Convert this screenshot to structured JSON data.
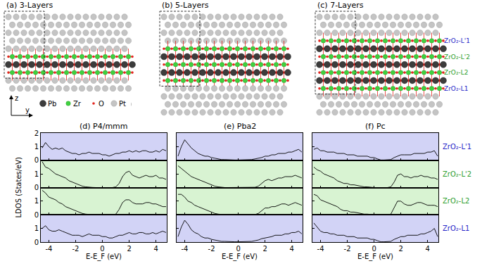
{
  "structures": {
    "panels": [
      {
        "title": "(a) 3-Layers",
        "layers": 3
      },
      {
        "title": "(b) 5-Layers",
        "layers": 5
      },
      {
        "title": "(c) 7-Layers",
        "layers": 7
      }
    ],
    "atoms": [
      {
        "label": "Pb",
        "color": "#3c3c3c"
      },
      {
        "label": "Zr",
        "color": "#3fd13f"
      },
      {
        "label": "O",
        "color": "#e3261f"
      },
      {
        "label": "Pt",
        "color": "#c4c4c4"
      }
    ],
    "axes": {
      "vertical": "z",
      "horizontal": "y"
    },
    "layer_labels": [
      {
        "text": "ZrO₂-L'1",
        "color": "#2626c8"
      },
      {
        "text": "ZrO₂-L'2",
        "color": "#2e9e2e"
      },
      {
        "text": "ZrO₂-L2",
        "color": "#2e9e2e"
      },
      {
        "text": "ZrO₂-L1",
        "color": "#2626c8"
      }
    ]
  },
  "chart_data": [
    {
      "type": "line",
      "title": "(d) P4/mmm",
      "x_label": "E-E_F (eV)",
      "y_label": "LDOS (States/eV)",
      "tick_labels": true,
      "grid": false,
      "xlim": [
        -4.6,
        4.8
      ],
      "xticks": [
        -4,
        -2,
        0,
        2,
        4
      ],
      "x": [
        -4.5,
        -4.25,
        -4,
        -3.75,
        -3.5,
        -3.25,
        -3,
        -2.75,
        -2.5,
        -2.25,
        -2,
        -1.75,
        -1.5,
        -1.25,
        -1,
        -0.75,
        -0.5,
        -0.25,
        0,
        0.25,
        0.5,
        0.75,
        1,
        1.25,
        1.5,
        1.75,
        2,
        2.25,
        2.5,
        2.75,
        3,
        3.25,
        3.5,
        3.75,
        4,
        4.25,
        4.5,
        4.75
      ],
      "series": [
        {
          "name": "ZrO₂-L'1",
          "color": "#000000",
          "ylim": [
            0,
            2
          ],
          "yticks": [
            0,
            1,
            2
          ],
          "values": [
            0.9,
            1.3,
            1.0,
            0.8,
            0.9,
            0.8,
            0.9,
            0.7,
            0.6,
            0.5,
            0.5,
            0.4,
            0.5,
            0.5,
            0.6,
            0.5,
            0.5,
            0.5,
            0.4,
            0.4,
            0.3,
            0.4,
            0.5,
            0.5,
            0.6,
            0.6,
            0.7,
            0.6,
            0.7,
            0.6,
            0.7,
            0.7,
            0.6,
            0.6,
            0.7,
            0.6,
            0.8,
            0.7
          ]
        },
        {
          "name": "ZrO₂-L'2",
          "color": "#000000",
          "ylim": [
            0,
            2
          ],
          "yticks": [
            0,
            1
          ],
          "values": [
            1.9,
            1.5,
            1.4,
            1.2,
            1.0,
            0.9,
            0.8,
            0.7,
            0.5,
            0.4,
            0.3,
            0.2,
            0.1,
            0.05,
            0.02,
            0.01,
            0,
            0,
            0,
            0,
            0,
            0,
            0.05,
            0.3,
            0.8,
            1.1,
            1.2,
            0.9,
            0.8,
            0.7,
            0.8,
            0.9,
            0.8,
            0.8,
            0.9,
            0.7,
            0.7,
            0.6
          ]
        },
        {
          "name": "ZrO₂-L2",
          "color": "#000000",
          "ylim": [
            0,
            2
          ],
          "yticks": [
            0,
            1
          ],
          "values": [
            1.8,
            1.6,
            1.3,
            1.2,
            1.1,
            0.9,
            0.8,
            0.6,
            0.5,
            0.4,
            0.3,
            0.2,
            0.1,
            0.05,
            0.02,
            0.01,
            0,
            0,
            0,
            0,
            0,
            0,
            0.05,
            0.4,
            0.9,
            1.1,
            1.1,
            0.9,
            0.8,
            0.8,
            0.8,
            0.9,
            0.9,
            0.8,
            0.8,
            0.7,
            0.6,
            0.6
          ]
        },
        {
          "name": "ZrO₂-L1",
          "color": "#000000",
          "ylim": [
            0,
            2
          ],
          "yticks": [
            0,
            1
          ],
          "values": [
            1.0,
            1.2,
            0.9,
            0.8,
            0.8,
            0.9,
            0.8,
            0.7,
            0.6,
            0.5,
            0.5,
            0.5,
            0.4,
            0.5,
            0.6,
            0.5,
            0.5,
            0.5,
            0.4,
            0.4,
            0.3,
            0.3,
            0.4,
            0.5,
            0.5,
            0.6,
            0.7,
            0.6,
            0.6,
            0.7,
            0.7,
            0.6,
            0.6,
            0.7,
            0.6,
            0.7,
            0.8,
            0.7
          ]
        }
      ]
    },
    {
      "type": "line",
      "title": "(e) Pba2",
      "x_label": "E-E_F (eV)",
      "tick_labels": "x",
      "grid": false,
      "xlim": [
        -4.6,
        4.8
      ],
      "xticks": [
        -4,
        -2,
        0,
        2,
        4
      ],
      "x": [
        -4.5,
        -4.25,
        -4,
        -3.75,
        -3.5,
        -3.25,
        -3,
        -2.75,
        -2.5,
        -2.25,
        -2,
        -1.75,
        -1.5,
        -1.25,
        -1,
        -0.75,
        -0.5,
        -0.25,
        0,
        0.25,
        0.5,
        0.75,
        1,
        1.25,
        1.5,
        1.75,
        2,
        2.25,
        2.5,
        2.75,
        3,
        3.25,
        3.5,
        3.75,
        4,
        4.25,
        4.5,
        4.75
      ],
      "series": [
        {
          "name": "ZrO₂-L'1",
          "color": "#000000",
          "ylim": [
            0,
            2
          ],
          "yticks": [
            0,
            1,
            2
          ],
          "values": [
            0.3,
            1.0,
            1.5,
            1.2,
            0.9,
            0.7,
            0.5,
            0.4,
            0.3,
            0.3,
            0.2,
            0.15,
            0.1,
            0.05,
            0.05,
            0.03,
            0.02,
            0.02,
            0.02,
            0.02,
            0.02,
            0.03,
            0.05,
            0.1,
            0.15,
            0.2,
            0.3,
            0.3,
            0.4,
            0.4,
            0.5,
            0.5,
            0.5,
            0.6,
            0.6,
            0.7,
            0.8,
            0.6
          ]
        },
        {
          "name": "ZrO₂-L'2",
          "color": "#000000",
          "ylim": [
            0,
            2
          ],
          "yticks": [
            0,
            1
          ],
          "values": [
            1.6,
            1.4,
            1.2,
            1.0,
            0.8,
            0.7,
            0.6,
            0.5,
            0.4,
            0.3,
            0.2,
            0.1,
            0.05,
            0.02,
            0,
            0,
            0,
            0,
            0,
            0,
            0,
            0,
            0,
            0.02,
            0.1,
            0.3,
            0.5,
            0.6,
            0.5,
            0.6,
            0.7,
            0.7,
            0.8,
            0.8,
            0.8,
            0.9,
            0.8,
            0.7
          ]
        },
        {
          "name": "ZrO₂-L2",
          "color": "#000000",
          "ylim": [
            0,
            2
          ],
          "yticks": [
            0,
            1
          ],
          "values": [
            1.5,
            1.5,
            1.3,
            1.0,
            0.9,
            0.7,
            0.6,
            0.5,
            0.4,
            0.3,
            0.2,
            0.1,
            0.05,
            0.02,
            0,
            0,
            0,
            0,
            0,
            0,
            0,
            0,
            0,
            0.02,
            0.1,
            0.3,
            0.5,
            0.5,
            0.6,
            0.6,
            0.7,
            0.8,
            0.8,
            0.7,
            0.8,
            0.9,
            0.8,
            0.7
          ]
        },
        {
          "name": "ZrO₂-L1",
          "color": "#000000",
          "ylim": [
            0,
            2
          ],
          "yticks": [
            0,
            1
          ],
          "values": [
            0.4,
            1.1,
            1.6,
            1.3,
            0.9,
            0.7,
            0.6,
            0.4,
            0.3,
            0.3,
            0.2,
            0.15,
            0.1,
            0.05,
            0.05,
            0.03,
            0.02,
            0.02,
            0.02,
            0.02,
            0.02,
            0.03,
            0.05,
            0.1,
            0.15,
            0.25,
            0.3,
            0.35,
            0.4,
            0.5,
            0.5,
            0.5,
            0.6,
            0.6,
            0.7,
            0.7,
            0.8,
            0.6
          ]
        }
      ]
    },
    {
      "type": "line",
      "title": "(f) Pc",
      "x_label": "E-E_F (eV)",
      "tick_labels": "x",
      "grid": false,
      "xlim": [
        -4.6,
        4.8
      ],
      "xticks": [
        -4,
        -2,
        0,
        2,
        4
      ],
      "x": [
        -4.5,
        -4.25,
        -4,
        -3.75,
        -3.5,
        -3.25,
        -3,
        -2.75,
        -2.5,
        -2.25,
        -2,
        -1.75,
        -1.5,
        -1.25,
        -1,
        -0.75,
        -0.5,
        -0.25,
        0,
        0.25,
        0.5,
        0.75,
        1,
        1.25,
        1.5,
        1.75,
        2,
        2.25,
        2.5,
        2.75,
        3,
        3.25,
        3.5,
        3.75,
        4,
        4.25,
        4.5,
        4.75
      ],
      "series": [
        {
          "name": "ZrO₂-L'1",
          "color": "#000000",
          "ylim": [
            0,
            2
          ],
          "yticks": [
            0,
            1,
            2
          ],
          "values": [
            0.8,
            0.9,
            0.7,
            0.7,
            0.6,
            0.6,
            0.6,
            0.5,
            0.5,
            0.5,
            0.4,
            0.4,
            0.4,
            0.3,
            0.3,
            0.3,
            0.3,
            0.2,
            0.2,
            0.1,
            0.02,
            0.02,
            0.02,
            0.05,
            0.2,
            0.3,
            0.4,
            0.4,
            0.4,
            0.4,
            0.5,
            0.5,
            0.5,
            0.5,
            0.6,
            0.6,
            0.7,
            0.3
          ]
        },
        {
          "name": "ZrO₂-L'2",
          "color": "#000000",
          "ylim": [
            0,
            2
          ],
          "yticks": [
            0,
            1
          ],
          "values": [
            1.5,
            1.3,
            1.2,
            1.0,
            0.9,
            0.8,
            0.7,
            0.5,
            0.4,
            0.3,
            0.3,
            0.2,
            0.2,
            0.15,
            0.1,
            0.05,
            0.05,
            0.02,
            0,
            0,
            0,
            0,
            0,
            0.05,
            0.4,
            0.9,
            1.0,
            0.8,
            0.8,
            0.7,
            0.8,
            0.8,
            0.9,
            0.8,
            0.8,
            0.7,
            0.7,
            0.6
          ]
        },
        {
          "name": "ZrO₂-L2",
          "color": "#000000",
          "ylim": [
            0,
            2
          ],
          "yticks": [
            0,
            1
          ],
          "values": [
            1.5,
            1.4,
            1.1,
            1.0,
            0.9,
            0.8,
            0.7,
            0.6,
            0.4,
            0.3,
            0.3,
            0.2,
            0.2,
            0.15,
            0.1,
            0.05,
            0.05,
            0.02,
            0,
            0,
            0,
            0,
            0,
            0.05,
            0.5,
            1.0,
            1.0,
            0.8,
            0.7,
            0.7,
            0.8,
            0.9,
            0.9,
            0.8,
            0.7,
            0.7,
            0.7,
            0.6
          ]
        },
        {
          "name": "ZrO₂-L1",
          "color": "#000000",
          "ylim": [
            0,
            2
          ],
          "yticks": [
            0,
            1
          ],
          "values": [
            1.4,
            1.1,
            0.8,
            0.7,
            0.7,
            0.6,
            0.6,
            0.5,
            0.5,
            0.5,
            0.4,
            0.4,
            0.4,
            0.3,
            0.3,
            0.3,
            0.3,
            0.2,
            0.2,
            0.1,
            0.02,
            0.02,
            0.02,
            0.05,
            0.2,
            0.3,
            0.4,
            0.4,
            0.5,
            0.5,
            0.5,
            0.5,
            0.6,
            0.6,
            0.7,
            0.8,
            1.0,
            0.4
          ]
        }
      ]
    }
  ]
}
